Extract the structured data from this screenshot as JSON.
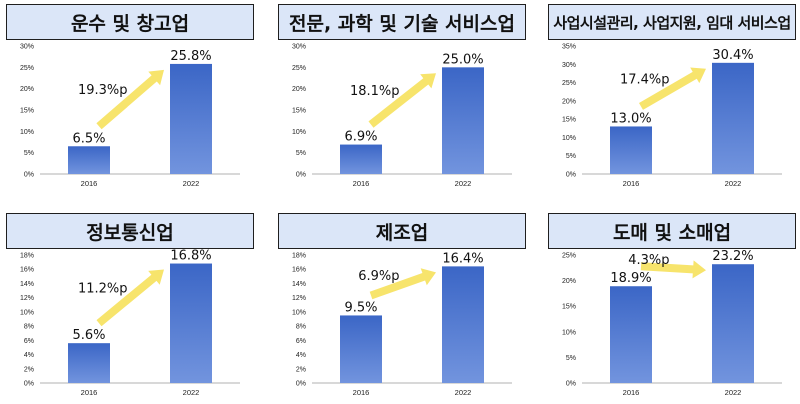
{
  "colors": {
    "bar": "#3b66c6",
    "bar_light": "#7294de",
    "arrow": "#f7e46c",
    "title_bg": "#dbe6f8"
  },
  "chart_data": [
    {
      "type": "bar",
      "title": "운수 및 창고업",
      "categories": [
        "2016",
        "2022"
      ],
      "values": [
        6.5,
        25.8
      ],
      "value_labels": [
        "6.5%",
        "25.8%"
      ],
      "delta_label": "19.3%p",
      "ylim": [
        0,
        30
      ],
      "yticks": [
        0,
        5,
        10,
        15,
        20,
        25,
        30
      ],
      "tick_suffix": "%"
    },
    {
      "type": "bar",
      "title": "전문, 과학 및 기술 서비스업",
      "categories": [
        "2016",
        "2022"
      ],
      "values": [
        6.9,
        25.0
      ],
      "value_labels": [
        "6.9%",
        "25.0%"
      ],
      "delta_label": "18.1%p",
      "ylim": [
        0,
        30
      ],
      "yticks": [
        0,
        5,
        10,
        15,
        20,
        25,
        30
      ],
      "tick_suffix": "%"
    },
    {
      "type": "bar",
      "title": "사업시설관리, 사업지원, 임대 서비스업",
      "categories": [
        "2016",
        "2022"
      ],
      "values": [
        13.0,
        30.4
      ],
      "value_labels": [
        "13.0%",
        "30.4%"
      ],
      "delta_label": "17.4%p",
      "ylim": [
        0,
        35
      ],
      "yticks": [
        0,
        5,
        10,
        15,
        20,
        25,
        30,
        35
      ],
      "tick_suffix": "%"
    },
    {
      "type": "bar",
      "title": "정보통신업",
      "categories": [
        "2016",
        "2022"
      ],
      "values": [
        5.6,
        16.8
      ],
      "value_labels": [
        "5.6%",
        "16.8%"
      ],
      "delta_label": "11.2%p",
      "ylim": [
        0,
        18
      ],
      "yticks": [
        0,
        2,
        4,
        6,
        8,
        10,
        12,
        14,
        16,
        18
      ],
      "tick_suffix": "%"
    },
    {
      "type": "bar",
      "title": "제조업",
      "categories": [
        "2016",
        "2022"
      ],
      "values": [
        9.5,
        16.4
      ],
      "value_labels": [
        "9.5%",
        "16.4%"
      ],
      "delta_label": "6.9%p",
      "ylim": [
        0,
        18
      ],
      "yticks": [
        0,
        2,
        4,
        6,
        8,
        10,
        12,
        14,
        16,
        18
      ],
      "tick_suffix": "%"
    },
    {
      "type": "bar",
      "title": "도매 및 소매업",
      "categories": [
        "2016",
        "2022"
      ],
      "values": [
        18.9,
        23.2
      ],
      "value_labels": [
        "18.9%",
        "23.2%"
      ],
      "delta_label": "4.3%p",
      "ylim": [
        0,
        25
      ],
      "yticks": [
        0,
        5,
        10,
        15,
        20,
        25
      ],
      "tick_suffix": "%"
    }
  ]
}
